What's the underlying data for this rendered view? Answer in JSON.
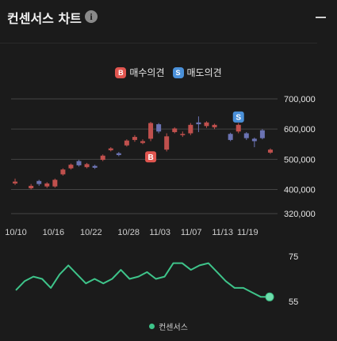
{
  "header": {
    "title": "컨센서스 차트",
    "info_icon": "info-icon",
    "minimize_icon": "minimize-icon"
  },
  "legend": {
    "buy_badge": "B",
    "buy_label": "매수의견",
    "sell_badge": "S",
    "sell_label": "매도의견",
    "consensus_label": "컨센서스"
  },
  "colors": {
    "background": "#1b1b1b",
    "up": "#c0504d",
    "down": "#6b73b3",
    "buy": "#e0554f",
    "sell": "#4a90d9",
    "consensus": "#3ec48a",
    "grid": "#444444"
  },
  "chart_data": [
    {
      "type": "candlestick",
      "xlabel": "",
      "ylabel": "",
      "ylim": [
        300000,
        720000
      ],
      "y_ticks": [
        "700,000",
        "600,000",
        "500,000",
        "400,000",
        "320,000"
      ],
      "y_tick_values": [
        700000,
        600000,
        500000,
        400000,
        320000
      ],
      "x_ticks": [
        "10/10",
        "10/16",
        "10/22",
        "10/28",
        "11/03",
        "11/07",
        "11/13",
        "11/19"
      ],
      "candles": [
        {
          "i": 0,
          "o": 420000,
          "c": 426000,
          "h": 436000,
          "l": 415000
        },
        {
          "i": 2,
          "o": 404000,
          "c": 412000,
          "h": 418000,
          "l": 400000
        },
        {
          "i": 3,
          "o": 428000,
          "c": 418000,
          "h": 432000,
          "l": 412000
        },
        {
          "i": 4,
          "o": 410000,
          "c": 420000,
          "h": 424000,
          "l": 405000
        },
        {
          "i": 5,
          "o": 410000,
          "c": 432000,
          "h": 436000,
          "l": 406000
        },
        {
          "i": 6,
          "o": 450000,
          "c": 466000,
          "h": 470000,
          "l": 446000
        },
        {
          "i": 7,
          "o": 470000,
          "c": 482000,
          "h": 486000,
          "l": 466000
        },
        {
          "i": 8,
          "o": 494000,
          "c": 480000,
          "h": 498000,
          "l": 476000
        },
        {
          "i": 9,
          "o": 474000,
          "c": 484000,
          "h": 488000,
          "l": 470000
        },
        {
          "i": 10,
          "o": 478000,
          "c": 472000,
          "h": 482000,
          "l": 468000
        },
        {
          "i": 11,
          "o": 498000,
          "c": 512000,
          "h": 516000,
          "l": 494000
        },
        {
          "i": 12,
          "o": 530000,
          "c": 536000,
          "h": 540000,
          "l": 526000
        },
        {
          "i": 13,
          "o": 520000,
          "c": 514000,
          "h": 524000,
          "l": 510000
        },
        {
          "i": 14,
          "o": 546000,
          "c": 562000,
          "h": 566000,
          "l": 542000
        },
        {
          "i": 15,
          "o": 564000,
          "c": 574000,
          "h": 580000,
          "l": 558000
        },
        {
          "i": 16,
          "o": 554000,
          "c": 560000,
          "h": 566000,
          "l": 550000
        },
        {
          "i": 17,
          "o": 568000,
          "c": 620000,
          "h": 624000,
          "l": 560000
        },
        {
          "i": 18,
          "o": 616000,
          "c": 592000,
          "h": 620000,
          "l": 586000
        },
        {
          "i": 19,
          "o": 532000,
          "c": 576000,
          "h": 586000,
          "l": 526000
        },
        {
          "i": 20,
          "o": 590000,
          "c": 602000,
          "h": 606000,
          "l": 586000
        },
        {
          "i": 21,
          "o": 580000,
          "c": 584000,
          "h": 592000,
          "l": 574000
        },
        {
          "i": 22,
          "o": 586000,
          "c": 614000,
          "h": 620000,
          "l": 580000
        },
        {
          "i": 23,
          "o": 622000,
          "c": 616000,
          "h": 642000,
          "l": 590000
        },
        {
          "i": 24,
          "o": 610000,
          "c": 622000,
          "h": 626000,
          "l": 604000
        },
        {
          "i": 25,
          "o": 606000,
          "c": 614000,
          "h": 618000,
          "l": 600000
        },
        {
          "i": 27,
          "o": 584000,
          "c": 564000,
          "h": 588000,
          "l": 560000
        },
        {
          "i": 28,
          "o": 592000,
          "c": 614000,
          "h": 620000,
          "l": 586000
        },
        {
          "i": 29,
          "o": 586000,
          "c": 570000,
          "h": 590000,
          "l": 564000
        },
        {
          "i": 30,
          "o": 568000,
          "c": 560000,
          "h": 572000,
          "l": 540000
        },
        {
          "i": 31,
          "o": 596000,
          "c": 570000,
          "h": 600000,
          "l": 566000
        },
        {
          "i": 32,
          "o": 522000,
          "c": 532000,
          "h": 536000,
          "l": 518000
        }
      ],
      "markers": [
        {
          "label": "B",
          "kind": "buy",
          "i": 17,
          "y": 508000
        },
        {
          "label": "S",
          "kind": "sell",
          "i": 28,
          "y": 640000
        }
      ],
      "n_slots": 33
    },
    {
      "type": "line",
      "name": "컨센서스",
      "ylim": [
        52,
        80
      ],
      "y_ticks": [
        "75",
        "55"
      ],
      "y_tick_values": [
        75,
        55
      ],
      "values": [
        60,
        64,
        66,
        65,
        61,
        67,
        71,
        67,
        63,
        65,
        63,
        65,
        69,
        65,
        66,
        68,
        65,
        66,
        72,
        72,
        69,
        71,
        72,
        68,
        64,
        61,
        61,
        59,
        57,
        57
      ]
    }
  ]
}
